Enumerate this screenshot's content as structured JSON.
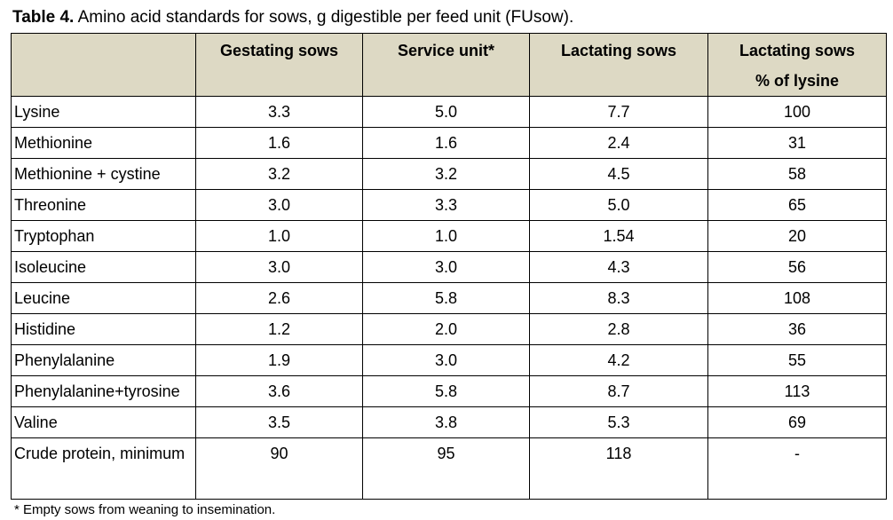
{
  "caption": {
    "label": "Table 4.",
    "text": " Amino acid standards for sows, g digestible per feed unit (FUsow)."
  },
  "table": {
    "columns": [
      {
        "line1": "",
        "line2": ""
      },
      {
        "line1": "Gestating sows",
        "line2": ""
      },
      {
        "line1": "Service unit*",
        "line2": ""
      },
      {
        "line1": "Lactating sows",
        "line2": ""
      },
      {
        "line1": "Lactating sows",
        "line2": "% of lysine"
      }
    ],
    "rows": [
      {
        "name": "Lysine",
        "gestating": "3.3",
        "service": "5.0",
        "lactating": "7.7",
        "pct_lysine": "100"
      },
      {
        "name": "Methionine",
        "gestating": "1.6",
        "service": "1.6",
        "lactating": "2.4",
        "pct_lysine": "31"
      },
      {
        "name": "Methionine + cystine",
        "gestating": "3.2",
        "service": "3.2",
        "lactating": "4.5",
        "pct_lysine": "58"
      },
      {
        "name": "Threonine",
        "gestating": "3.0",
        "service": "3.3",
        "lactating": "5.0",
        "pct_lysine": "65"
      },
      {
        "name": "Tryptophan",
        "gestating": "1.0",
        "service": "1.0",
        "lactating": "1.54",
        "pct_lysine": "20"
      },
      {
        "name": "Isoleucine",
        "gestating": "3.0",
        "service": "3.0",
        "lactating": "4.3",
        "pct_lysine": "56"
      },
      {
        "name": "Leucine",
        "gestating": "2.6",
        "service": "5.8",
        "lactating": "8.3",
        "pct_lysine": "108"
      },
      {
        "name": "Histidine",
        "gestating": "1.2",
        "service": "2.0",
        "lactating": "2.8",
        "pct_lysine": "36"
      },
      {
        "name": "Phenylalanine",
        "gestating": "1.9",
        "service": "3.0",
        "lactating": "4.2",
        "pct_lysine": "55"
      },
      {
        "name": "Phenylalanine+tyrosine",
        "gestating": "3.6",
        "service": "5.8",
        "lactating": "8.7",
        "pct_lysine": "113"
      },
      {
        "name": "Valine",
        "gestating": "3.5",
        "service": "3.8",
        "lactating": "5.3",
        "pct_lysine": "69"
      },
      {
        "name": "Crude protein, minimum",
        "gestating": "90",
        "service": "95",
        "lactating": "118",
        "pct_lysine": "-"
      }
    ]
  },
  "footnote": "* Empty sows from weaning to insemination."
}
